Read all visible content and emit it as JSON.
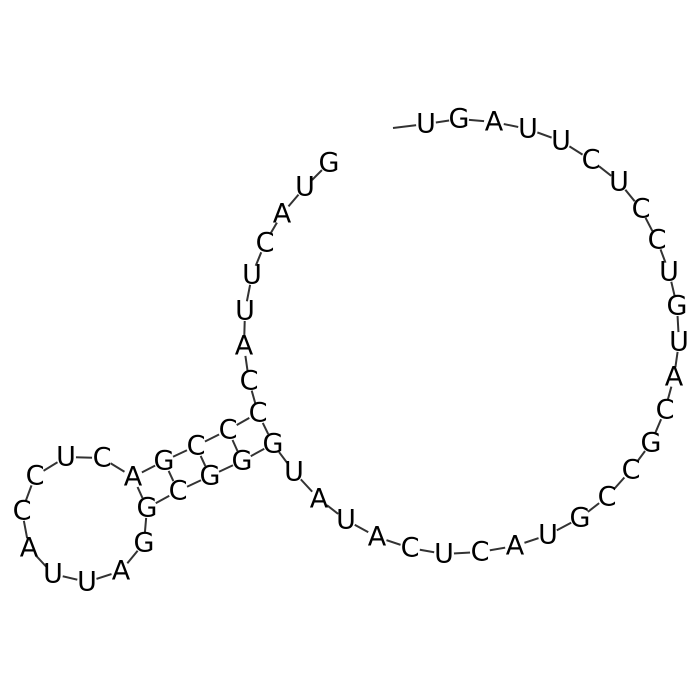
{
  "structure": {
    "sequence": [
      "G",
      "U",
      "A",
      "C",
      "U",
      "U",
      "A",
      "C",
      "C",
      "C",
      "C",
      "G",
      "A",
      "C",
      "U",
      "C",
      "C",
      "A",
      "U",
      "U",
      "A",
      "G",
      "G",
      "C",
      "G",
      "G",
      "G",
      "U",
      "A",
      "U",
      "A",
      "C",
      "U",
      "C",
      "A",
      "U",
      "G",
      "C",
      "C",
      "G",
      "C",
      "A",
      "U",
      "G",
      "U",
      "C",
      "C",
      "U",
      "C",
      "U",
      "U",
      "A",
      "G",
      "U"
    ],
    "base_pairs": [
      [
        8,
        26
      ],
      [
        9,
        25
      ],
      [
        10,
        24
      ],
      [
        11,
        23
      ],
      [
        12,
        22
      ]
    ]
  }
}
